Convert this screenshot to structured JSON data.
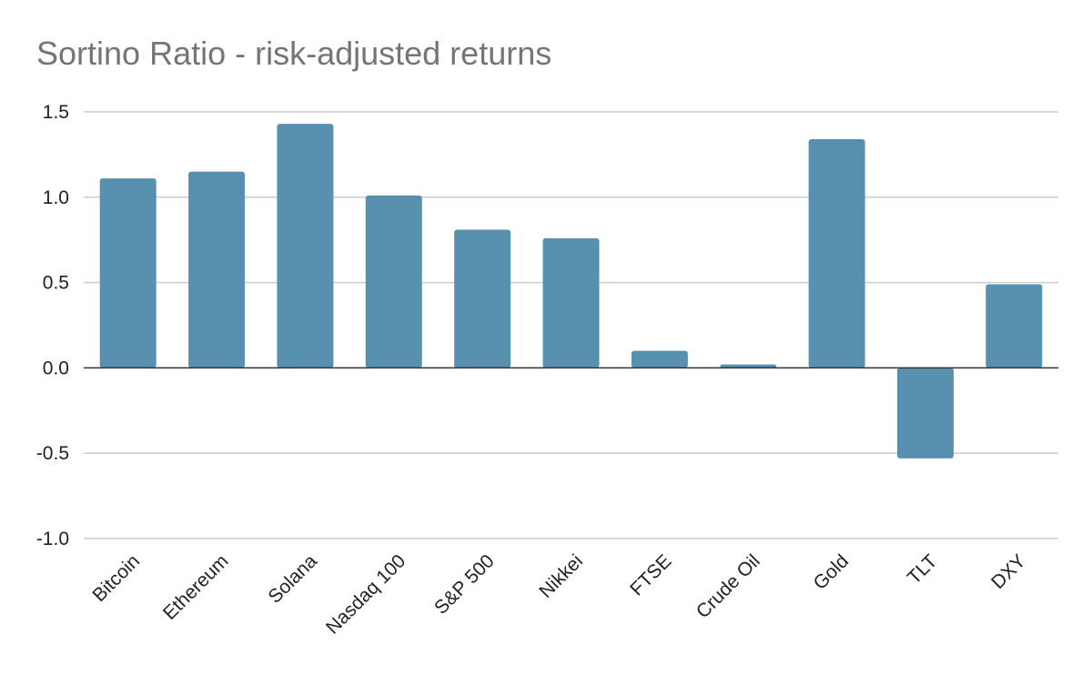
{
  "chart_data": {
    "type": "bar",
    "title": "Sortino Ratio - risk-adjusted returns",
    "xlabel": "",
    "ylabel": "",
    "categories": [
      "Bitcoin",
      "Ethereum",
      "Solana",
      "Nasdaq 100",
      "S&P 500",
      "Nikkei",
      "FTSE",
      "Crude Oil",
      "Gold",
      "TLT",
      "DXY"
    ],
    "values": [
      1.11,
      1.15,
      1.43,
      1.01,
      0.81,
      0.76,
      0.1,
      0.02,
      1.34,
      -0.53,
      0.49
    ],
    "ylim": [
      -1.0,
      1.5
    ],
    "yticks": [
      "1.5",
      "1.0",
      "0.5",
      "0.0",
      "-0.5",
      "-1.0"
    ],
    "ytick_values": [
      1.5,
      1.0,
      0.5,
      0.0,
      -0.5,
      -1.0
    ],
    "grid": true,
    "legend": "none",
    "colors": {
      "bar": "#5891b0",
      "grid": "#cccccc",
      "axis": "#333333",
      "title": "#757575"
    }
  }
}
